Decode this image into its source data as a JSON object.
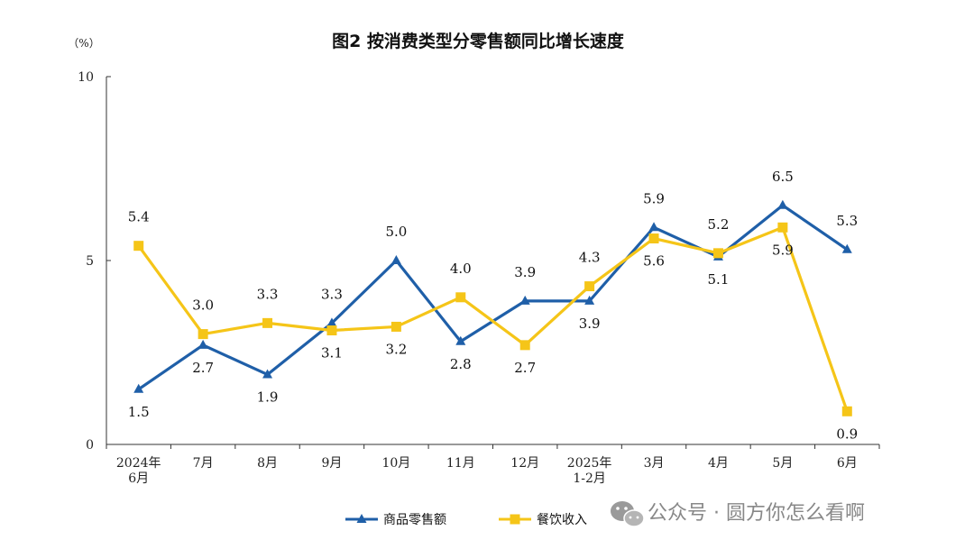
{
  "chart_data": {
    "type": "line",
    "title": "图2 按消费类型分零售额同比增长速度",
    "unit_label": "（%）",
    "ylim": [
      0,
      10
    ],
    "yticks": [
      "0",
      "5",
      "10"
    ],
    "categories": [
      [
        "2024年",
        "6月"
      ],
      [
        "7月"
      ],
      [
        "8月"
      ],
      [
        "9月"
      ],
      [
        "10月"
      ],
      [
        "11月"
      ],
      [
        "12月"
      ],
      [
        "2025年",
        "1-2月"
      ],
      [
        "3月"
      ],
      [
        "4月"
      ],
      [
        "5月"
      ],
      [
        "6月"
      ]
    ],
    "series": [
      {
        "name": "商品零售额",
        "color": "#1f5fa8",
        "marker": "triangle",
        "values": [
          1.5,
          2.7,
          1.9,
          3.3,
          5.0,
          2.8,
          3.9,
          3.9,
          5.9,
          5.1,
          6.5,
          5.3
        ],
        "labels": [
          "1.5",
          "2.7",
          "1.9",
          "3.3",
          "5.0",
          "2.8",
          "3.9",
          "3.9",
          "5.9",
          "5.1",
          "6.5",
          "5.3"
        ]
      },
      {
        "name": "餐饮收入",
        "color": "#f5c518",
        "marker": "square",
        "values": [
          5.4,
          3.0,
          3.3,
          3.1,
          3.2,
          4.0,
          2.7,
          4.3,
          5.6,
          5.2,
          5.9,
          0.9
        ],
        "labels": [
          "5.4",
          "3.0",
          "3.3",
          "3.1",
          "3.2",
          "4.0",
          "2.7",
          "4.3",
          "5.6",
          "5.2",
          "5.9",
          "0.9"
        ]
      }
    ],
    "grid": false,
    "legend": "bottom-center"
  },
  "watermark": {
    "text": "公众号 · 圆方你怎么看啊",
    "icon": "wechat-icon"
  }
}
